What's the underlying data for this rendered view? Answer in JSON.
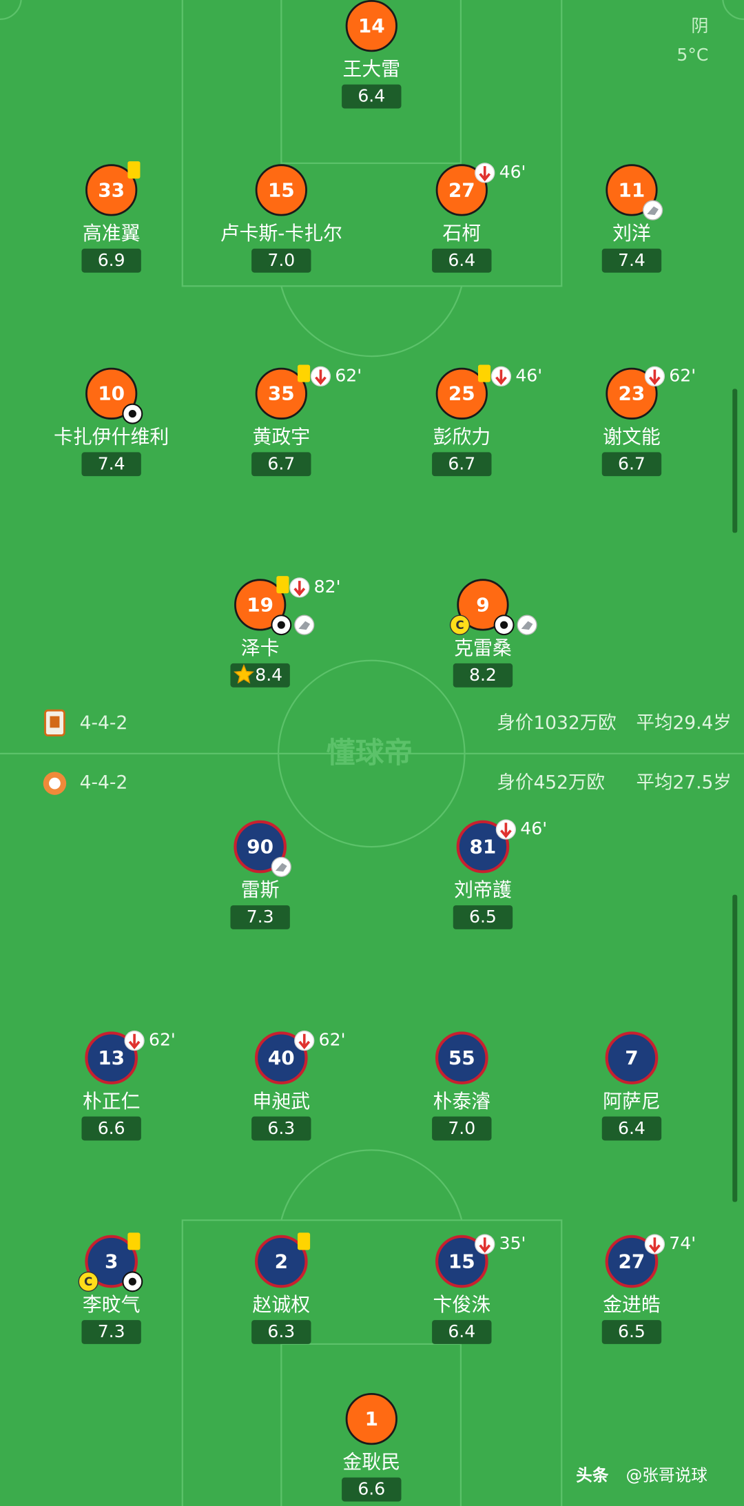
{
  "weather": {
    "condition": "阴",
    "temperature": "5°C"
  },
  "watermark": "懂球帝",
  "captain_label": "C",
  "footer": {
    "source": "头条",
    "author": "@张哥说球"
  },
  "home_team": {
    "formation": "4-4-2",
    "market_value": "身价1032万欧",
    "average_age": "平均29.4岁",
    "players": [
      {
        "number": "14",
        "name": "王大雷",
        "rating": "6.4"
      },
      {
        "number": "33",
        "name": "高准翼",
        "rating": "6.9",
        "yellow_card": true
      },
      {
        "number": "15",
        "name": "卢卡斯-卡扎尔",
        "rating": "7.0"
      },
      {
        "number": "27",
        "name": "石柯",
        "rating": "6.4",
        "sub_minute": "46'"
      },
      {
        "number": "11",
        "name": "刘洋",
        "rating": "7.4",
        "assist": true
      },
      {
        "number": "10",
        "name": "卡扎伊什维利",
        "rating": "7.4",
        "goal": true
      },
      {
        "number": "35",
        "name": "黄政宇",
        "rating": "6.7",
        "yellow_card": true,
        "sub_minute": "62'"
      },
      {
        "number": "25",
        "name": "彭欣力",
        "rating": "6.7",
        "yellow_card": true,
        "sub_minute": "46'"
      },
      {
        "number": "23",
        "name": "谢文能",
        "rating": "6.7",
        "sub_minute": "62'"
      },
      {
        "number": "19",
        "name": "泽卡",
        "rating": "8.4",
        "star": true,
        "yellow_card": true,
        "sub_minute": "82'",
        "goal": true,
        "assist": true
      },
      {
        "number": "9",
        "name": "克雷桑",
        "rating": "8.2",
        "captain": true,
        "goal": true,
        "assist": true
      }
    ]
  },
  "away_team": {
    "formation": "4-4-2",
    "market_value": "身价452万欧",
    "average_age": "平均27.5岁",
    "players": [
      {
        "number": "90",
        "name": "雷斯",
        "rating": "7.3",
        "assist": true
      },
      {
        "number": "81",
        "name": "刘帝護",
        "rating": "6.5",
        "sub_minute": "46'"
      },
      {
        "number": "13",
        "name": "朴正仁",
        "rating": "6.6",
        "sub_minute": "62'"
      },
      {
        "number": "40",
        "name": "申昶武",
        "rating": "6.3",
        "sub_minute": "62'"
      },
      {
        "number": "55",
        "name": "朴泰濬",
        "rating": "7.0"
      },
      {
        "number": "7",
        "name": "阿萨尼",
        "rating": "6.4"
      },
      {
        "number": "3",
        "name": "李旼气",
        "rating": "7.3",
        "yellow_card": true,
        "captain": true,
        "goal": true
      },
      {
        "number": "2",
        "name": "赵诚权",
        "rating": "6.3",
        "yellow_card": true
      },
      {
        "number": "15",
        "name": "卞俊洙",
        "rating": "6.4",
        "sub_minute": "35'"
      },
      {
        "number": "27",
        "name": "金进皓",
        "rating": "6.5",
        "sub_minute": "74'"
      },
      {
        "number": "1",
        "name": "金耿民",
        "rating": "6.6",
        "goalkeeper": true
      }
    ]
  }
}
